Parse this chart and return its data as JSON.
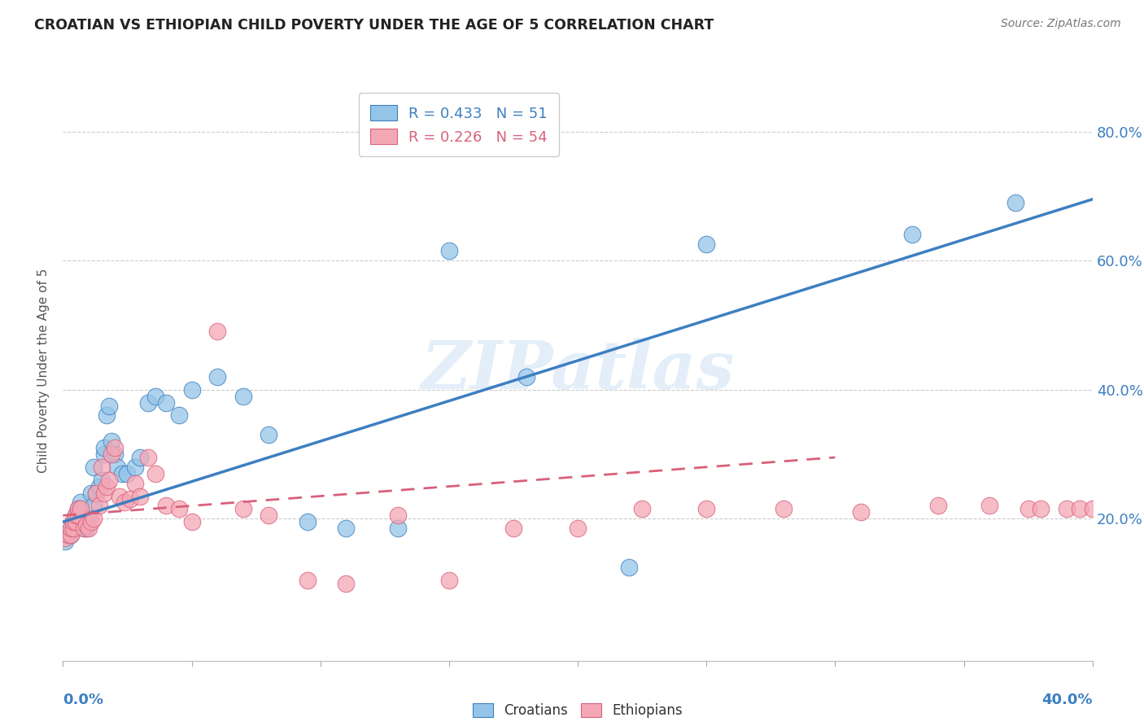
{
  "title": "CROATIAN VS ETHIOPIAN CHILD POVERTY UNDER THE AGE OF 5 CORRELATION CHART",
  "source": "Source: ZipAtlas.com",
  "ylabel": "Child Poverty Under the Age of 5",
  "xlim": [
    0.0,
    0.4
  ],
  "ylim": [
    -0.02,
    0.88
  ],
  "yticks": [
    0.2,
    0.4,
    0.6,
    0.8
  ],
  "ytick_labels": [
    "20.0%",
    "40.0%",
    "60.0%",
    "80.0%"
  ],
  "legend_cro_text": "R = 0.433   N = 51",
  "legend_eth_text": "R = 0.226   N = 54",
  "croatian_color": "#94c5e8",
  "ethiopian_color": "#f4a7b5",
  "blue_line_color": "#3d7fc1",
  "pink_line_color": "#d9607a",
  "watermark": "ZIPatlas",
  "cro_line_x0": 0.0,
  "cro_line_y0": 0.195,
  "cro_line_x1": 0.4,
  "cro_line_y1": 0.695,
  "eth_line_x0": 0.0,
  "eth_line_y0": 0.205,
  "eth_line_x1": 0.3,
  "eth_line_y1": 0.295,
  "croatians_x": [
    0.001,
    0.002,
    0.003,
    0.003,
    0.004,
    0.004,
    0.005,
    0.005,
    0.006,
    0.006,
    0.007,
    0.007,
    0.008,
    0.008,
    0.009,
    0.009,
    0.01,
    0.011,
    0.012,
    0.012,
    0.013,
    0.014,
    0.015,
    0.016,
    0.016,
    0.017,
    0.018,
    0.019,
    0.02,
    0.021,
    0.023,
    0.025,
    0.028,
    0.03,
    0.033,
    0.036,
    0.04,
    0.045,
    0.05,
    0.06,
    0.07,
    0.08,
    0.095,
    0.11,
    0.13,
    0.15,
    0.18,
    0.22,
    0.25,
    0.33,
    0.37
  ],
  "croatians_y": [
    0.165,
    0.175,
    0.175,
    0.185,
    0.185,
    0.195,
    0.195,
    0.205,
    0.205,
    0.215,
    0.215,
    0.225,
    0.185,
    0.19,
    0.185,
    0.195,
    0.2,
    0.24,
    0.22,
    0.28,
    0.24,
    0.25,
    0.26,
    0.3,
    0.31,
    0.36,
    0.375,
    0.32,
    0.3,
    0.28,
    0.27,
    0.27,
    0.28,
    0.295,
    0.38,
    0.39,
    0.38,
    0.36,
    0.4,
    0.42,
    0.39,
    0.33,
    0.195,
    0.185,
    0.185,
    0.615,
    0.42,
    0.125,
    0.625,
    0.64,
    0.69
  ],
  "ethiopians_x": [
    0.001,
    0.002,
    0.003,
    0.003,
    0.004,
    0.004,
    0.005,
    0.005,
    0.006,
    0.006,
    0.007,
    0.008,
    0.009,
    0.01,
    0.011,
    0.012,
    0.013,
    0.014,
    0.015,
    0.016,
    0.017,
    0.018,
    0.019,
    0.02,
    0.022,
    0.024,
    0.026,
    0.028,
    0.03,
    0.033,
    0.036,
    0.04,
    0.045,
    0.05,
    0.06,
    0.07,
    0.08,
    0.095,
    0.11,
    0.13,
    0.15,
    0.175,
    0.2,
    0.225,
    0.25,
    0.28,
    0.31,
    0.34,
    0.36,
    0.375,
    0.38,
    0.39,
    0.395,
    0.4
  ],
  "ethiopians_y": [
    0.17,
    0.175,
    0.175,
    0.185,
    0.185,
    0.195,
    0.195,
    0.205,
    0.205,
    0.215,
    0.215,
    0.185,
    0.19,
    0.185,
    0.195,
    0.2,
    0.24,
    0.22,
    0.28,
    0.24,
    0.25,
    0.26,
    0.3,
    0.31,
    0.235,
    0.225,
    0.23,
    0.255,
    0.235,
    0.295,
    0.27,
    0.22,
    0.215,
    0.195,
    0.49,
    0.215,
    0.205,
    0.105,
    0.1,
    0.205,
    0.105,
    0.185,
    0.185,
    0.215,
    0.215,
    0.215,
    0.21,
    0.22,
    0.22,
    0.215,
    0.215,
    0.215,
    0.215,
    0.215
  ]
}
